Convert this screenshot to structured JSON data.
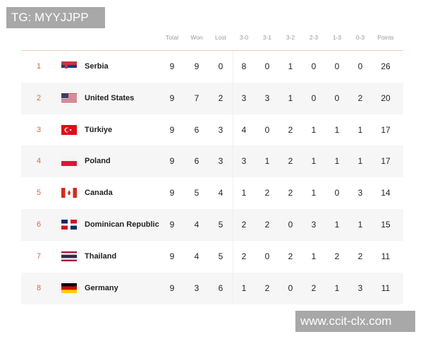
{
  "watermarks": {
    "top": "TG: MYYJJPP",
    "bottom": "www.ccit-clx.com"
  },
  "headers": [
    "Total",
    "Won",
    "Lost",
    "3-0",
    "3-1",
    "3-2",
    "2-3",
    "1-3",
    "0-3",
    "Points"
  ],
  "rows": [
    {
      "rank": "1",
      "team": "Serbia",
      "flag": "serbia-flag",
      "stats": [
        "9",
        "9",
        "0",
        "8",
        "0",
        "1",
        "0",
        "0",
        "0",
        "26"
      ]
    },
    {
      "rank": "2",
      "team": "United States",
      "flag": "usa-flag",
      "stats": [
        "9",
        "7",
        "2",
        "3",
        "3",
        "1",
        "0",
        "0",
        "2",
        "20"
      ]
    },
    {
      "rank": "3",
      "team": "Türkiye",
      "flag": "turkey-flag",
      "stats": [
        "9",
        "6",
        "3",
        "4",
        "0",
        "2",
        "1",
        "1",
        "1",
        "17"
      ]
    },
    {
      "rank": "4",
      "team": "Poland",
      "flag": "poland-flag",
      "stats": [
        "9",
        "6",
        "3",
        "3",
        "1",
        "2",
        "1",
        "1",
        "1",
        "17"
      ]
    },
    {
      "rank": "5",
      "team": "Canada",
      "flag": "canada-flag",
      "stats": [
        "9",
        "5",
        "4",
        "1",
        "2",
        "2",
        "1",
        "0",
        "3",
        "14"
      ]
    },
    {
      "rank": "6",
      "team": "Dominican Republic",
      "flag": "dominican-republic-flag",
      "stats": [
        "9",
        "4",
        "5",
        "2",
        "2",
        "0",
        "3",
        "1",
        "1",
        "15"
      ]
    },
    {
      "rank": "7",
      "team": "Thailand",
      "flag": "thailand-flag",
      "stats": [
        "9",
        "4",
        "5",
        "2",
        "0",
        "2",
        "1",
        "2",
        "2",
        "11"
      ]
    },
    {
      "rank": "8",
      "team": "Germany",
      "flag": "germany-flag",
      "stats": [
        "9",
        "3",
        "6",
        "1",
        "2",
        "0",
        "2",
        "1",
        "3",
        "11"
      ]
    }
  ],
  "colors": {
    "rank": "#d4693a",
    "header_line": "#f0c9b4",
    "alt_row": "#f6f6f6"
  }
}
